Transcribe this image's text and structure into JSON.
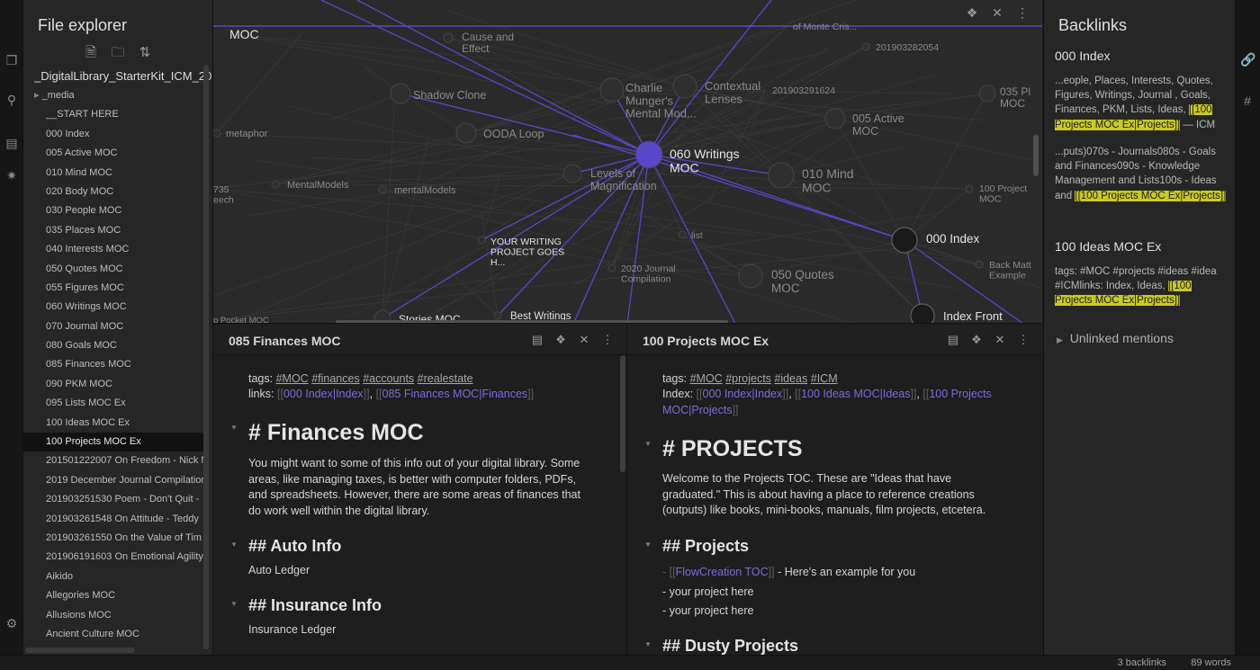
{
  "explorer": {
    "title": "File explorer",
    "root": "_DigitalLibrary_StarterKit_ICM_20",
    "tools": [
      "new-note-icon",
      "new-folder-icon",
      "sort-icon"
    ],
    "items": [
      {
        "label": "_media",
        "folder": true
      },
      {
        "label": "__START HERE"
      },
      {
        "label": "000 Index"
      },
      {
        "label": "005 Active MOC"
      },
      {
        "label": "010 Mind MOC"
      },
      {
        "label": "020 Body MOC"
      },
      {
        "label": "030 People MOC"
      },
      {
        "label": "035 Places MOC"
      },
      {
        "label": "040 Interests MOC"
      },
      {
        "label": "050 Quotes MOC"
      },
      {
        "label": "055 Figures MOC"
      },
      {
        "label": "060 Writings MOC"
      },
      {
        "label": "070 Journal MOC"
      },
      {
        "label": "080 Goals MOC"
      },
      {
        "label": "085 Finances MOC"
      },
      {
        "label": "090 PKM MOC"
      },
      {
        "label": "095 Lists MOC Ex"
      },
      {
        "label": "100 Ideas MOC Ex"
      },
      {
        "label": "100 Projects MOC Ex",
        "selected": true
      },
      {
        "label": "201501222007 On Freedom - Nick N"
      },
      {
        "label": "2019 December Journal Compilation"
      },
      {
        "label": "201903251530 Poem - Don't Quit -"
      },
      {
        "label": "201903261548 On Attitude - Teddy"
      },
      {
        "label": "201903261550 On the Value of Tim"
      },
      {
        "label": "201906191603 On Emotional Agility"
      },
      {
        "label": "Aikido"
      },
      {
        "label": "Allegories MOC"
      },
      {
        "label": "Allusions MOC"
      },
      {
        "label": "Ancient Culture MOC"
      }
    ]
  },
  "graph": {
    "accent": "#5a46c8",
    "nodes": [
      {
        "label": "MOC"
      },
      {
        "label": "Cause and Effect"
      },
      {
        "label": "Shadow Clone"
      },
      {
        "label": "Charlie Munger's Mental Mod..."
      },
      {
        "label": "Contextual Lenses"
      },
      {
        "label": "OODA Loop"
      },
      {
        "label": "metaphor"
      },
      {
        "label": "060 Writings MOC"
      },
      {
        "label": "Levels of Magnification"
      },
      {
        "label": "MentalModels"
      },
      {
        "label": "mentalModels"
      },
      {
        "label": "010 Mind MOC"
      },
      {
        "label": "005 Active MOC"
      },
      {
        "label": "201903291624"
      },
      {
        "label": "201903282054"
      },
      {
        "label": "of Monte Cris..."
      },
      {
        "label": "035 Pl MOC"
      },
      {
        "label": "100 Project MOC"
      },
      {
        "label": "000 Index"
      },
      {
        "label": "YOUR WRITING PROJECT GOES H..."
      },
      {
        "label": "list"
      },
      {
        "label": "2020 Journal Compilation"
      },
      {
        "label": "050 Quotes MOC"
      },
      {
        "label": "Back Matt Example"
      },
      {
        "label": "735 eech"
      },
      {
        "label": "Stories MOC"
      },
      {
        "label": "Best Writings"
      },
      {
        "label": "Index Front"
      },
      {
        "label": "p Pocket MOC"
      }
    ]
  },
  "pane1": {
    "title": "085 Finances MOC",
    "tags_label": "tags:",
    "tags": [
      "#MOC",
      "#finances",
      "#accounts",
      "#realestate"
    ],
    "links_label": "links:",
    "links": [
      "000 Index|Index",
      "085 Finances MOC|Finances"
    ],
    "h1": "# Finances MOC",
    "para": [
      "You might want to some of this info out of your digital library. Some",
      "areas, like managing taxes, is better with computer folders, PDFs,",
      "and spreadsheets. However, there are some areas of finances that",
      "do work well within the digital library."
    ],
    "h2a": "## Auto Info",
    "t2a": "Auto Ledger",
    "h2b": "## Insurance Info",
    "t2b": "Insurance Ledger"
  },
  "pane2": {
    "title": "100 Projects MOC Ex",
    "tags_label": "tags:",
    "tags": [
      "#MOC",
      "#projects",
      "#ideas",
      "#ICM"
    ],
    "index_label": "Index:",
    "links": [
      "000 Index|Index",
      "100 Ideas MOC|Ideas",
      "100 Projects",
      "MOC|Projects"
    ],
    "h1": "# PROJECTS",
    "para": [
      "Welcome to the Projects TOC. These are \"Ideas that have",
      "graduated.\" This is about having a place to reference creations",
      "(outputs) like books, mini-books, manuals, film projects, etcetera."
    ],
    "h2a": "## Projects",
    "list1_prefix": "- ",
    "list1_link": "FlowCreation TOC",
    "list1_suffix": " - Here's an example for you",
    "list2": " - your project here",
    "list3": " - your project here",
    "h2b": "## Dusty Projects"
  },
  "backlinks": {
    "title": "Backlinks",
    "groups": [
      {
        "file": "000 Index",
        "snip1": "...eople, Places, Interests, Quotes, Figures, Writings, Journal , Goals, Finances, PKM, Lists, Ideas,",
        "hl1": "[[100 Projects MOC Ex|Projects]]",
        "tail1": "— ICM",
        "snip2": "...puts)070s - Journals080s - Goals and Finances090s - Knowledge Management and Lists100s - Ideas and",
        "hl2": "[[100 Projects MOC Ex|Projects]]"
      },
      {
        "file": "100 Ideas MOC Ex",
        "snip1": "tags: #MOC #projects #ideas #idea #ICMlinks: Index, Ideas,",
        "hl1": "[[100 Projects MOC Ex|Projects]]"
      }
    ],
    "unlinked": "Unlinked mentions"
  },
  "status": {
    "backlinks": "3 backlinks",
    "words": "89 words"
  }
}
